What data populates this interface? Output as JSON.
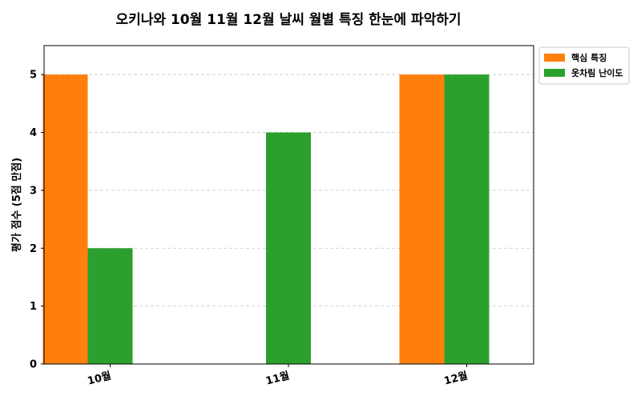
{
  "chart_data": {
    "type": "bar",
    "title": "오키나와 10월 11월 12월 날씨 월별 특징 한눈에 파악하기",
    "xlabel": "",
    "ylabel": "평가 점수 (5점 만점)",
    "categories": [
      "10월",
      "11월",
      "12월"
    ],
    "series": [
      {
        "name": "핵심 특징",
        "values": [
          5,
          0,
          5
        ],
        "color": "#ff7f0e"
      },
      {
        "name": "옷차림 난이도",
        "values": [
          2,
          4,
          5
        ],
        "color": "#2ca02c"
      }
    ],
    "ylim": [
      0,
      5.5
    ],
    "yticks": [
      0,
      1,
      2,
      3,
      4,
      5
    ],
    "grid": true,
    "legend_position": "outside-top-right"
  }
}
